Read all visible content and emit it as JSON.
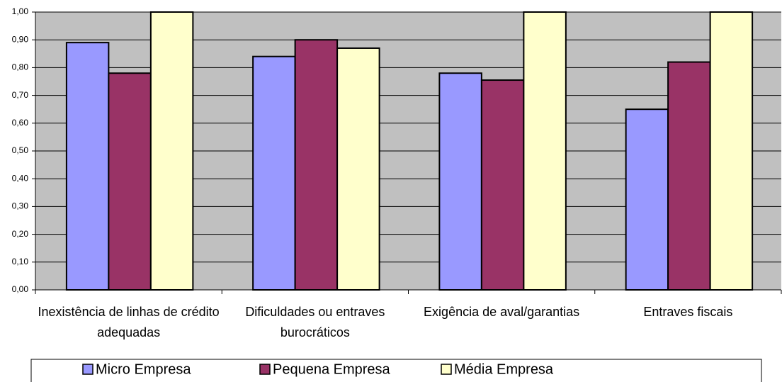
{
  "chart_data": {
    "type": "bar",
    "categories": [
      "Inexistência de linhas de crédito adequadas",
      "Dificuldades ou entraves burocráticos",
      "Exigência de aval/garantias",
      "Entraves fiscais"
    ],
    "series": [
      {
        "name": "Micro Empresa",
        "color": "#9999ff",
        "values": [
          0.89,
          0.84,
          0.78,
          0.65
        ]
      },
      {
        "name": "Pequena Empresa",
        "color": "#993366",
        "values": [
          0.78,
          0.9,
          0.755,
          0.82
        ]
      },
      {
        "name": "Média Empresa",
        "color": "#ffffcc",
        "values": [
          1.0,
          0.87,
          1.0,
          1.0
        ]
      }
    ],
    "ylim": [
      0,
      1
    ],
    "yticks": [
      {
        "value": 0,
        "label": "0,00"
      },
      {
        "value": 0.1,
        "label": "0,10"
      },
      {
        "value": 0.2,
        "label": "0,20"
      },
      {
        "value": 0.3,
        "label": "0,30"
      },
      {
        "value": 0.4,
        "label": "0,40"
      },
      {
        "value": 0.5,
        "label": "0,50"
      },
      {
        "value": 0.6,
        "label": "0,60"
      },
      {
        "value": 0.7,
        "label": "0,70"
      },
      {
        "value": 0.8,
        "label": "0,80"
      },
      {
        "value": 0.9,
        "label": "0,90"
      },
      {
        "value": 1,
        "label": "1,00"
      }
    ],
    "grid": true,
    "legend": "bottom"
  }
}
